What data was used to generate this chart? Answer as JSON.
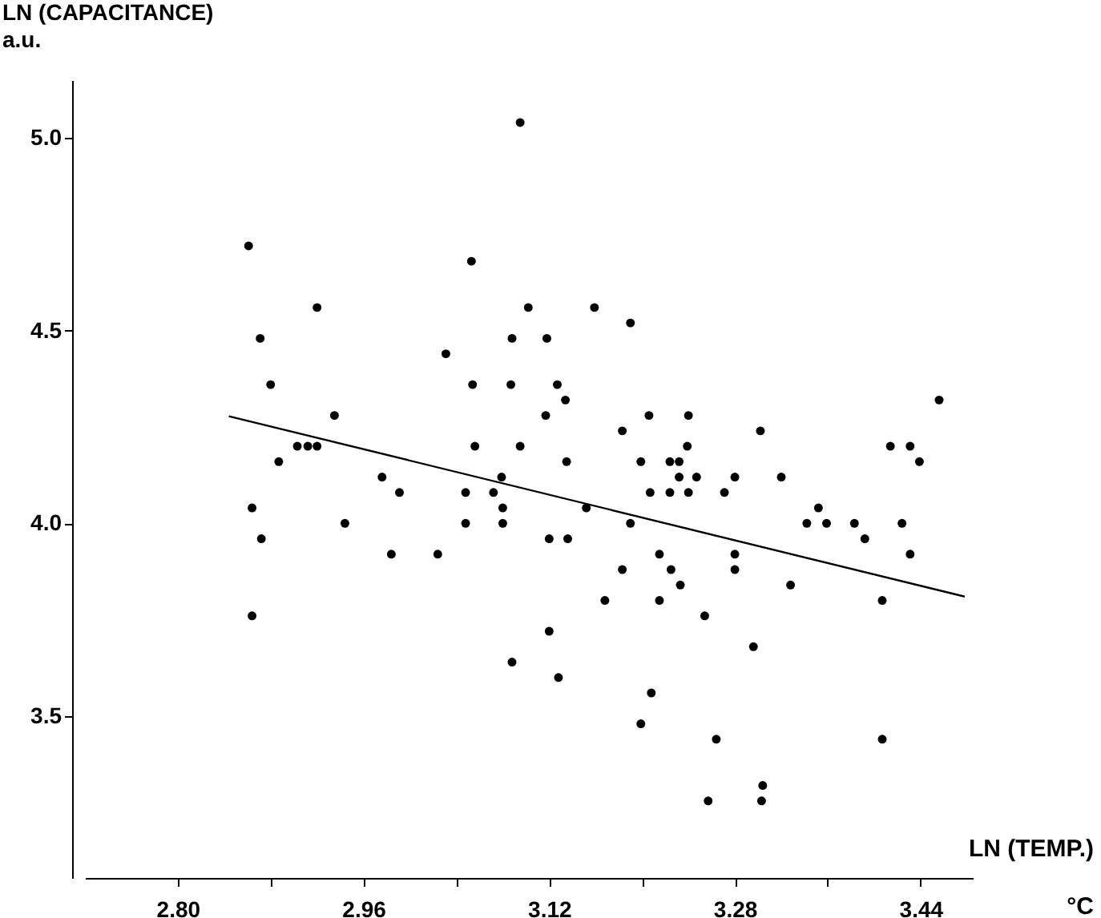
{
  "chart_data": {
    "type": "scatter",
    "xlabel": "LN (TEMP.)\n°C",
    "ylabel": "LN (CAPACITANCE)\na.u.",
    "xlim": [
      2.72,
      3.485
    ],
    "ylim": [
      3.08,
      5.15
    ],
    "xticks": [
      {
        "value": 2.8,
        "label": "2.80"
      },
      {
        "value": 2.88,
        "label": null
      },
      2.96,
      {
        "value": 3.04,
        "label": null
      },
      3.12,
      {
        "value": 3.2,
        "label": null
      },
      3.28,
      {
        "value": 3.36,
        "label": null
      },
      3.44
    ],
    "yticks": [
      3.5,
      {
        "value": 4,
        "label": "4.0"
      },
      4.5,
      {
        "value": 5,
        "label": "5.0"
      }
    ],
    "grid": false,
    "series": [
      {
        "marker": "circle",
        "color": "#000000",
        "x": [
          2.861,
          2.871,
          2.92,
          2.88,
          2.935,
          2.887,
          2.903,
          2.912,
          2.92,
          2.976,
          3.031,
          3.053,
          3.054,
          3.056,
          3.088,
          3.087,
          3.095,
          3.102,
          3.118,
          3.127,
          3.117,
          3.095,
          3.079,
          3.159,
          3.19,
          3.134,
          3.206,
          3.24,
          3.183,
          3.302,
          3.239,
          3.135,
          3.199,
          3.224,
          3.232,
          3.414,
          3.431,
          3.439,
          3.456,
          3.232,
          3.247,
          3.28,
          3.32,
          3.207,
          3.224,
          3.24,
          3.271,
          3.152,
          3.352,
          3.342,
          3.359,
          3.383,
          3.424,
          3.19,
          3.12,
          3.136,
          3.392,
          3.215,
          3.28,
          3.431,
          3.183,
          3.225,
          3.28,
          3.233,
          3.328,
          3.168,
          3.215,
          3.407,
          3.254,
          3.12,
          3.296,
          3.128,
          3.208,
          3.199,
          3.264,
          3.407,
          3.304,
          3.257,
          3.303,
          2.991,
          2.864,
          2.872,
          2.944,
          2.984,
          3.024,
          3.048,
          3.048,
          3.072,
          3.08,
          3.08,
          2.864,
          3.088
        ],
        "values": [
          4.72,
          4.48,
          4.56,
          4.36,
          4.28,
          4.16,
          4.2,
          4.2,
          4.2,
          4.12,
          4.44,
          4.68,
          4.36,
          4.2,
          4.48,
          4.36,
          5.04,
          4.56,
          4.48,
          4.36,
          4.28,
          4.2,
          4.12,
          4.56,
          4.52,
          4.32,
          4.28,
          4.28,
          4.24,
          4.24,
          4.2,
          4.16,
          4.16,
          4.16,
          4.16,
          4.2,
          4.2,
          4.16,
          4.32,
          4.12,
          4.12,
          4.12,
          4.12,
          4.08,
          4.08,
          4.08,
          4.08,
          4.04,
          4.04,
          4.0,
          4.0,
          4.0,
          4.0,
          4.0,
          3.96,
          3.96,
          3.96,
          3.92,
          3.92,
          3.92,
          3.88,
          3.88,
          3.88,
          3.84,
          3.84,
          3.8,
          3.8,
          3.8,
          3.76,
          3.72,
          3.68,
          3.6,
          3.56,
          3.48,
          3.44,
          3.44,
          3.32,
          3.28,
          3.28,
          4.08,
          4.04,
          3.96,
          4.0,
          3.92,
          3.92,
          4.08,
          4.0,
          4.08,
          4.04,
          4.0,
          3.76,
          3.64
        ]
      },
      {
        "type": "line",
        "marker": "none",
        "color": "#000000",
        "x": [
          2.844,
          3.478
        ],
        "values": [
          4.278,
          3.81
        ]
      }
    ]
  }
}
